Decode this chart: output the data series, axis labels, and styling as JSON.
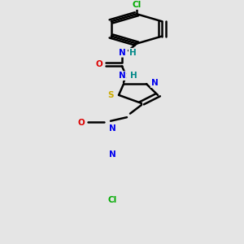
{
  "background_color": "#e5e5e5",
  "bond_color": "#000000",
  "bond_width": 1.8,
  "atom_colors": {
    "C": "#000000",
    "N": "#0000ee",
    "O": "#dd0000",
    "S": "#ccaa00",
    "Cl": "#00aa00",
    "H": "#008888"
  },
  "font_size": 7.5,
  "fig_size": [
    3.0,
    3.0
  ],
  "dpi": 100
}
